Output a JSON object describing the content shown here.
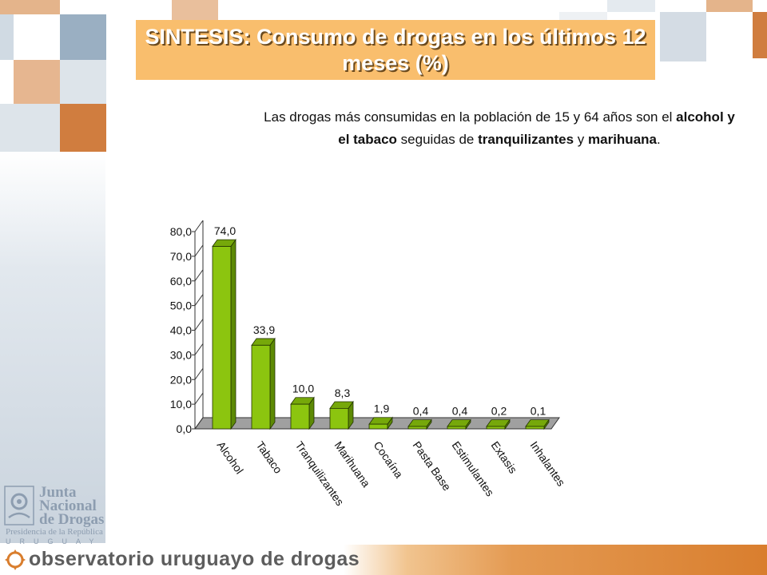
{
  "slide": {
    "title": "SINTESIS: Consumo de drogas en los últimos 12 meses (%)",
    "intro_parts": [
      {
        "text": "Las drogas más consumidas en la población de 15 y 64 años son el ",
        "bold": false
      },
      {
        "text": "alcohol y el tabaco",
        "bold": true
      },
      {
        "text": " seguidas de ",
        "bold": false
      },
      {
        "text": "tranquilizantes",
        "bold": true
      },
      {
        "text": " y ",
        "bold": false
      },
      {
        "text": "marihuana",
        "bold": true
      },
      {
        "text": ".",
        "bold": false
      }
    ]
  },
  "logo": {
    "line1": "Junta",
    "line2": "Nacional",
    "line3": "de Drogas",
    "sub": "Presidencia de la República",
    "country": "URUGUAY"
  },
  "footer": {
    "text": "observatorio uruguayo de drogas"
  },
  "colors": {
    "title_bg": "#f9be6d",
    "bar_front": "#8cc50f",
    "bar_top": "#76a80a",
    "bar_side": "#5d8a05",
    "floor": "#a0a0a0",
    "accent_orange": "#d97e2e",
    "accent_blue": "#9aafc2"
  },
  "chart_data": {
    "type": "bar",
    "categories": [
      "Alcohol",
      "Tabaco",
      "Tranquilizantes",
      "Marihuana",
      "Cocaína",
      "Pasta Base",
      "Estimulantes",
      "Extasis",
      "Inhalantes"
    ],
    "values": [
      74.0,
      33.9,
      10.0,
      8.3,
      1.9,
      0.4,
      0.4,
      0.2,
      0.1
    ],
    "value_labels": [
      "74,0",
      "33,9",
      "10,0",
      "8,3",
      "1,9",
      "0,4",
      "0,4",
      "0,2",
      "0,1"
    ],
    "y_ticks": [
      "0,0",
      "10,0",
      "20,0",
      "30,0",
      "40,0",
      "50,0",
      "60,0",
      "70,0",
      "80,0"
    ],
    "ylim": [
      0,
      80
    ],
    "grid": false,
    "style": "3d"
  }
}
